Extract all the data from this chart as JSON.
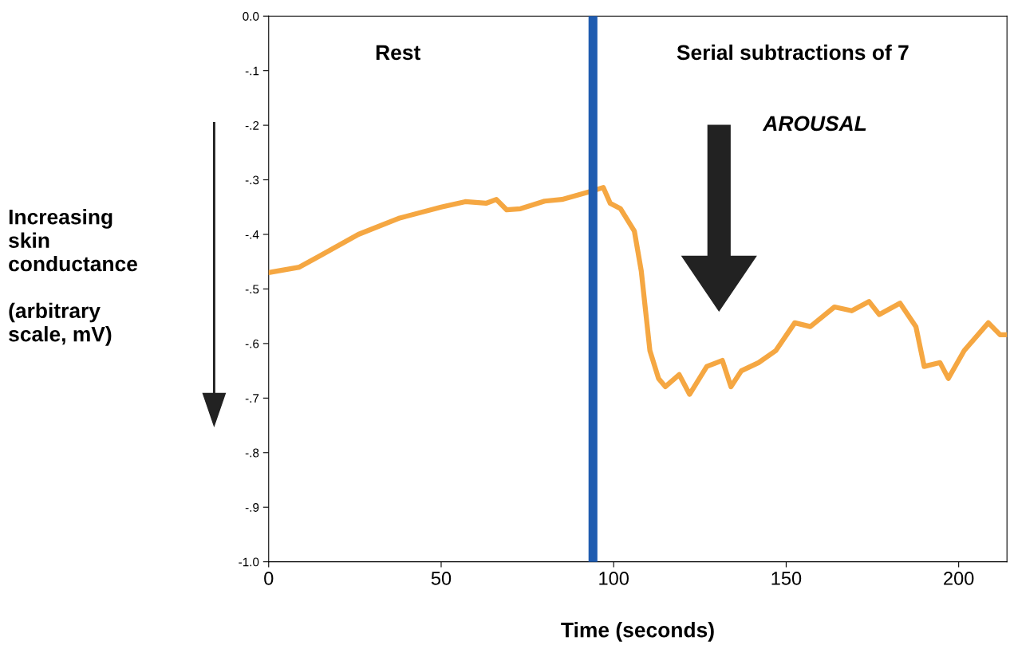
{
  "chart_data": {
    "type": "line",
    "xlabel": "Time (seconds)",
    "ylabel": "Increasing\nskin\nconductance\n\n(arbitrary\nscale, mV)",
    "x": [
      0,
      8.9,
      14.7,
      26,
      38,
      50,
      57,
      63,
      66,
      69,
      73,
      80,
      85,
      94,
      97,
      99,
      102,
      106,
      108,
      110.5,
      113,
      115,
      119,
      122,
      127,
      131.5,
      134,
      137,
      142,
      147,
      152.5,
      157,
      164,
      169,
      174,
      177,
      183,
      187.6,
      190,
      194.6,
      197,
      201.6,
      208.6,
      212,
      214
    ],
    "series": [
      {
        "color": "#f5a742",
        "values": [
          -0.47,
          -0.46,
          -0.44,
          -0.4,
          -0.37,
          -0.35,
          -0.34,
          -0.343,
          -0.336,
          -0.355,
          -0.353,
          -0.339,
          -0.336,
          -0.32,
          -0.314,
          -0.343,
          -0.353,
          -0.394,
          -0.467,
          -0.613,
          -0.664,
          -0.679,
          -0.657,
          -0.693,
          -0.642,
          -0.631,
          -0.679,
          -0.65,
          -0.635,
          -0.613,
          -0.562,
          -0.569,
          -0.533,
          -0.54,
          -0.523,
          -0.547,
          -0.526,
          -0.569,
          -0.642,
          -0.635,
          -0.664,
          -0.613,
          -0.562,
          -0.584,
          -0.584
        ]
      }
    ],
    "xlim": [
      0,
      214
    ],
    "xticks": [
      0,
      50,
      100,
      150,
      200
    ],
    "ylim": [
      -1.0,
      0.0
    ],
    "yticks": [
      {
        "value": 0.0,
        "label": "0.0"
      },
      {
        "value": -0.1,
        "label": "-.1"
      },
      {
        "value": -0.2,
        "label": "-.2"
      },
      {
        "value": -0.3,
        "label": "-.3"
      },
      {
        "value": -0.4,
        "label": "-.4"
      },
      {
        "value": -0.5,
        "label": "-.5"
      },
      {
        "value": -0.6,
        "label": "-.6"
      },
      {
        "value": -0.7,
        "label": "-.7"
      },
      {
        "value": -0.8,
        "label": "-.8"
      },
      {
        "value": -0.9,
        "label": "-.9"
      },
      {
        "value": -1.0,
        "label": "-1.0"
      }
    ],
    "ref_lines": [
      {
        "axis": "x",
        "value": 94,
        "color": "#1f5cb0"
      }
    ],
    "annotations": [
      "Rest",
      "Serial subtractions of 7",
      "AROUSAL"
    ],
    "grid": false,
    "marker": "none",
    "line_style": "solid"
  }
}
